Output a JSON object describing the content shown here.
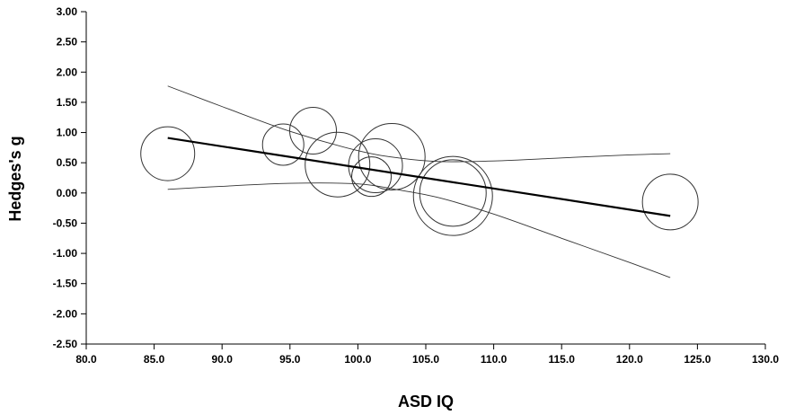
{
  "chart_data": {
    "type": "scatter",
    "title": "",
    "xlabel": "ASD IQ",
    "ylabel": "Hedges's g",
    "xlim": [
      80,
      130
    ],
    "ylim": [
      -2.5,
      3.0
    ],
    "x_ticks": [
      "80.0",
      "85.0",
      "90.0",
      "95.0",
      "100.0",
      "105.0",
      "110.0",
      "115.0",
      "120.0",
      "125.0",
      "130.0"
    ],
    "y_ticks": [
      "3.00",
      "2.50",
      "2.00",
      "1.50",
      "1.00",
      "0.50",
      "0.00",
      "-0.50",
      "-1.00",
      "-1.50",
      "-2.00",
      "-2.50"
    ],
    "grid": false,
    "legend": "none",
    "points": [
      {
        "x": 86.0,
        "y": 0.65,
        "r": 30
      },
      {
        "x": 94.5,
        "y": 0.8,
        "r": 23
      },
      {
        "x": 96.7,
        "y": 1.03,
        "r": 26
      },
      {
        "x": 98.5,
        "y": 0.47,
        "r": 36
      },
      {
        "x": 101.0,
        "y": 0.27,
        "r": 22
      },
      {
        "x": 101.3,
        "y": 0.45,
        "r": 30
      },
      {
        "x": 102.5,
        "y": 0.6,
        "r": 37
      },
      {
        "x": 107.0,
        "y": 0.0,
        "r": 37
      },
      {
        "x": 107.0,
        "y": -0.05,
        "r": 44
      },
      {
        "x": 123.0,
        "y": -0.15,
        "r": 31
      }
    ],
    "regression_line": {
      "x": [
        86.0,
        123.0
      ],
      "y": [
        0.91,
        -0.38
      ]
    },
    "confidence_upper": {
      "x": [
        86.0,
        90.0,
        95.0,
        100.0,
        103.0,
        106.0,
        110.0,
        115.0,
        120.0,
        123.0
      ],
      "y": [
        1.77,
        1.43,
        1.02,
        0.7,
        0.58,
        0.52,
        0.53,
        0.58,
        0.63,
        0.65
      ]
    },
    "confidence_lower": {
      "x": [
        86.0,
        90.0,
        95.0,
        100.0,
        103.0,
        106.0,
        110.0,
        115.0,
        120.0,
        123.0
      ],
      "y": [
        0.06,
        0.11,
        0.16,
        0.15,
        0.05,
        -0.08,
        -0.35,
        -0.75,
        -1.15,
        -1.4
      ]
    }
  }
}
